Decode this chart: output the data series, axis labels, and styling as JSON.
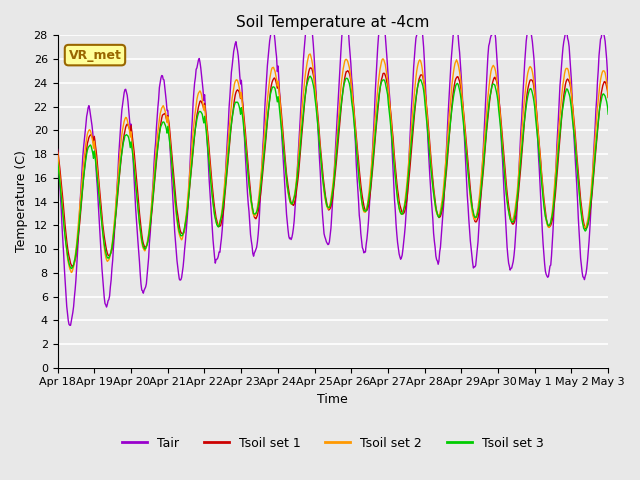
{
  "title": "Soil Temperature at -4cm",
  "xlabel": "Time",
  "ylabel": "Temperature (C)",
  "ylim": [
    0,
    28
  ],
  "plot_bg_color": "#e8e8e8",
  "grid_color": "#ffffff",
  "annotation_text": "VR_met",
  "annotation_bg": "#ffff99",
  "annotation_border": "#996600",
  "line_colors": {
    "Tair": "#9900cc",
    "Tsoil1": "#cc0000",
    "Tsoil2": "#ff9900",
    "Tsoil3": "#00cc00"
  },
  "legend_labels": [
    "Tair",
    "Tsoil set 1",
    "Tsoil set 2",
    "Tsoil set 3"
  ],
  "xtick_labels": [
    "Apr 18",
    "Apr 19",
    "Apr 20",
    "Apr 21",
    "Apr 22",
    "Apr 23",
    "Apr 24",
    "Apr 25",
    "Apr 26",
    "Apr 27",
    "Apr 28",
    "Apr 29",
    "Apr 30",
    "May 1",
    "May 2",
    "May 3"
  ],
  "n_days": 15,
  "points_per_day": 48
}
